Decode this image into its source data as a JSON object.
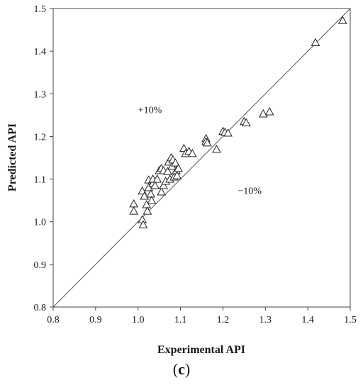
{
  "caption": {
    "open": "(",
    "letter": "c",
    "close": ")"
  },
  "chart_data": {
    "type": "scatter",
    "xlabel": "Experimental API",
    "ylabel": "Predicted API",
    "xlim": [
      0.8,
      1.5
    ],
    "ylim": [
      0.8,
      1.5
    ],
    "xticks": [
      "0.8",
      "0.9",
      "1.0",
      "1.1",
      "1.2",
      "1.3",
      "1.4",
      "1.5"
    ],
    "yticks": [
      "0.8",
      "0.9",
      "1.0",
      "1.1",
      "1.2",
      "1.3",
      "1.4",
      "1.5"
    ],
    "grid": false,
    "marker": "open-triangle",
    "reference_line": {
      "from": [
        0.8,
        0.8
      ],
      "to": [
        1.5,
        1.5
      ]
    },
    "annotations": [
      {
        "text": "+10%",
        "x": 1.0,
        "y": 1.255
      },
      {
        "text": "−10%",
        "x": 1.235,
        "y": 1.065
      }
    ],
    "points": [
      [
        0.99,
        1.042
      ],
      [
        0.99,
        1.025
      ],
      [
        1.01,
        1.005
      ],
      [
        1.012,
        0.993
      ],
      [
        1.01,
        1.072
      ],
      [
        1.015,
        1.06
      ],
      [
        1.02,
        1.04
      ],
      [
        1.022,
        1.025
      ],
      [
        1.025,
        1.08
      ],
      [
        1.025,
        1.098
      ],
      [
        1.03,
        1.065
      ],
      [
        1.032,
        1.05
      ],
      [
        1.035,
        1.09
      ],
      [
        1.035,
        1.1
      ],
      [
        1.04,
        1.085
      ],
      [
        1.045,
        1.1
      ],
      [
        1.05,
        1.12
      ],
      [
        1.055,
        1.07
      ],
      [
        1.055,
        1.125
      ],
      [
        1.06,
        1.085
      ],
      [
        1.06,
        1.12
      ],
      [
        1.065,
        1.095
      ],
      [
        1.07,
        1.118
      ],
      [
        1.072,
        1.14
      ],
      [
        1.075,
        1.1
      ],
      [
        1.078,
        1.15
      ],
      [
        1.08,
        1.13
      ],
      [
        1.082,
        1.145
      ],
      [
        1.085,
        1.105
      ],
      [
        1.088,
        1.138
      ],
      [
        1.09,
        1.12
      ],
      [
        1.092,
        1.108
      ],
      [
        1.095,
        1.125
      ],
      [
        1.108,
        1.172
      ],
      [
        1.112,
        1.16
      ],
      [
        1.12,
        1.165
      ],
      [
        1.128,
        1.16
      ],
      [
        1.16,
        1.195
      ],
      [
        1.16,
        1.188
      ],
      [
        1.163,
        1.185
      ],
      [
        1.185,
        1.17
      ],
      [
        1.2,
        1.212
      ],
      [
        1.205,
        1.21
      ],
      [
        1.212,
        1.208
      ],
      [
        1.25,
        1.235
      ],
      [
        1.255,
        1.232
      ],
      [
        1.295,
        1.253
      ],
      [
        1.31,
        1.258
      ],
      [
        1.418,
        1.42
      ],
      [
        1.482,
        1.472
      ]
    ]
  }
}
